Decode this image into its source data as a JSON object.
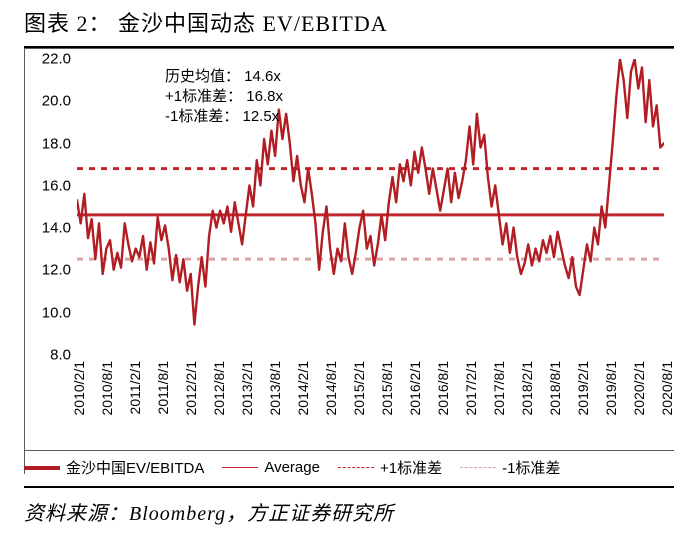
{
  "figure_label": "图表 2：",
  "title": "金沙中国动态 EV/EBITDA",
  "source": "资料来源：Bloomberg，方正证券研究所",
  "chart": {
    "type": "line",
    "background_color": "#ffffff",
    "grid_color": "#e0e0e0",
    "axis_color": "#5c5c5c",
    "annotation_fontsize": 15,
    "tick_fontsize": 15,
    "ylim": [
      8.0,
      22.0
    ],
    "ytick_step": 2.0,
    "yticks": [
      8.0,
      10.0,
      12.0,
      14.0,
      16.0,
      18.0,
      20.0,
      22.0
    ],
    "x_categories": [
      "2010/2/1",
      "2010/8/1",
      "2011/2/1",
      "2011/8/1",
      "2012/2/1",
      "2012/8/1",
      "2013/2/1",
      "2013/8/1",
      "2014/2/1",
      "2014/8/1",
      "2015/2/1",
      "2015/8/1",
      "2016/2/1",
      "2016/8/1",
      "2017/2/1",
      "2017/8/1",
      "2018/2/1",
      "2018/8/1",
      "2019/2/1",
      "2019/8/1",
      "2020/2/1",
      "2020/8/1"
    ],
    "annotations": [
      {
        "label": "历史均值：",
        "value": "14.6x"
      },
      {
        "label": "+1标准差：",
        "value": "16.8x"
      },
      {
        "label": "-1标准差：",
        "value": "12.5x"
      }
    ],
    "reference_lines": {
      "average": {
        "value": 14.6,
        "color": "#c1272d",
        "width": 1.5,
        "dash": "none",
        "label": "Average"
      },
      "plus1sd": {
        "value": 16.8,
        "color": "#c1272d",
        "width": 1.5,
        "dash": "6,6",
        "label": "+1标准差"
      },
      "minus1sd": {
        "value": 12.5,
        "color": "#d9a3a3",
        "width": 1.5,
        "dash": "6,6",
        "label": "-1标准差"
      }
    },
    "series": {
      "name": "金沙中国EV/EBITDA",
      "color": "#b11d22",
      "line_width": 2.4,
      "data": [
        15.3,
        14.2,
        15.6,
        13.5,
        14.4,
        12.5,
        14.2,
        11.8,
        13.0,
        13.4,
        12.0,
        12.8,
        12.1,
        14.2,
        13.2,
        12.4,
        13.0,
        12.6,
        13.6,
        12.0,
        13.3,
        12.3,
        14.5,
        13.4,
        14.1,
        13.0,
        11.5,
        12.7,
        11.4,
        12.5,
        11.0,
        11.8,
        9.4,
        11.2,
        12.6,
        11.2,
        13.6,
        14.8,
        14.0,
        14.8,
        14.2,
        15.0,
        13.8,
        15.2,
        14.2,
        13.2,
        14.6,
        16.0,
        15.0,
        17.2,
        16.0,
        18.2,
        17.0,
        18.6,
        17.4,
        19.6,
        18.2,
        19.4,
        18.0,
        16.2,
        17.4,
        16.0,
        15.2,
        16.8,
        15.6,
        14.2,
        12.0,
        13.8,
        15.0,
        13.0,
        11.8,
        13.0,
        12.4,
        14.2,
        12.6,
        11.8,
        12.8,
        14.0,
        14.8,
        13.0,
        13.6,
        12.2,
        13.2,
        14.6,
        13.4,
        15.2,
        16.4,
        15.2,
        17.0,
        16.2,
        17.2,
        16.0,
        17.6,
        16.6,
        17.8,
        16.8,
        15.6,
        16.8,
        15.8,
        14.8,
        15.8,
        16.8,
        15.2,
        16.6,
        15.4,
        16.2,
        17.2,
        18.8,
        17.0,
        19.4,
        17.8,
        18.4,
        16.4,
        15.0,
        16.0,
        14.6,
        13.2,
        14.2,
        12.8,
        14.0,
        12.6,
        11.8,
        12.3,
        13.2,
        12.2,
        13.0,
        12.4,
        13.4,
        12.8,
        13.6,
        12.6,
        13.8,
        13.0,
        12.2,
        11.6,
        12.6,
        11.2,
        10.8,
        12.0,
        13.2,
        12.4,
        14.0,
        13.2,
        15.0,
        14.0,
        16.0,
        18.0,
        20.2,
        22.0,
        21.0,
        19.2,
        21.4,
        22.0,
        20.6,
        21.6,
        19.0,
        21.0,
        18.8,
        19.8,
        17.8,
        18.0
      ]
    },
    "legend": [
      {
        "swatch": "solid-thick",
        "color": "#b11d22",
        "width": 3,
        "label": "金沙中国EV/EBITDA"
      },
      {
        "swatch": "solid-thin",
        "color": "#c1272d",
        "width": 1.5,
        "label": "Average"
      },
      {
        "swatch": "dash",
        "color": "#c1272d",
        "width": 1.5,
        "label": "+1标准差"
      },
      {
        "swatch": "dash",
        "color": "#d9a3a3",
        "width": 1.5,
        "label": "-1标准差"
      }
    ]
  }
}
